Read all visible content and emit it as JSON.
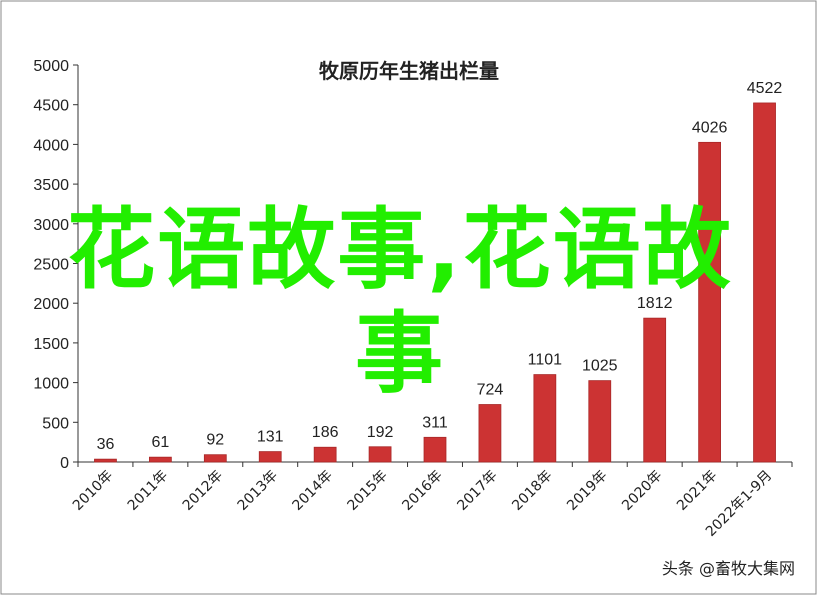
{
  "chart_data": {
    "type": "bar",
    "title": "牧原历年生猪出栏量",
    "categories": [
      "2010年",
      "2011年",
      "2012年",
      "2013年",
      "2014年",
      "2015年",
      "2016年",
      "2017年",
      "2018年",
      "2019年",
      "2020年",
      "2021年",
      "2022年1-9月"
    ],
    "values": [
      36,
      61,
      92,
      131,
      186,
      192,
      311,
      724,
      1101,
      1025,
      1812,
      4026,
      4522
    ],
    "data_labels": [
      "36",
      "61",
      "92",
      "131",
      "186",
      "192",
      "311",
      "724",
      "1101",
      "1025",
      "1812",
      "4026",
      "4522"
    ],
    "ylim": [
      0,
      5000
    ],
    "yticks": [
      0,
      500,
      1000,
      1500,
      2000,
      2500,
      3000,
      3500,
      4000,
      4500,
      5000
    ],
    "xlabel": "",
    "ylabel": "",
    "bar_color": "#cc3333",
    "grid": false,
    "legend": "none"
  },
  "overlay_text": "花语故事,花语故事",
  "overlay_color": "#22ee00",
  "watermark": "头条 @畜牧大集网"
}
